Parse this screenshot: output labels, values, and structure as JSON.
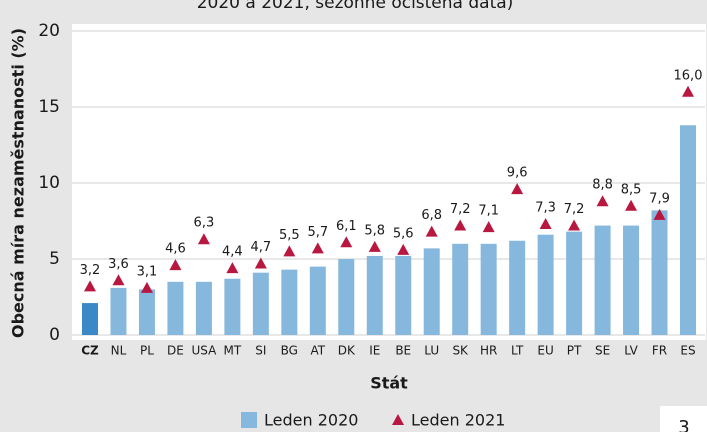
{
  "chart_data": {
    "type": "bar",
    "title": "2020 a 2021, sezónně očištěná data)",
    "x_label": "Stát",
    "y_label": "Obecná míra nezaměstnanosti (%)",
    "categories": [
      "CZ",
      "NL",
      "PL",
      "DE",
      "USA",
      "MT",
      "SI",
      "BG",
      "AT",
      "DK",
      "IE",
      "BE",
      "LU",
      "SK",
      "HR",
      "LT",
      "EU",
      "PT",
      "SE",
      "LV",
      "FR",
      "ES"
    ],
    "series": [
      {
        "name": "Leden 2020",
        "color": "#86b8de",
        "colors": [
          "#3b88c6",
          "#86b8de",
          "#86b8de",
          "#86b8de",
          "#86b8de",
          "#86b8de",
          "#86b8de",
          "#86b8de",
          "#86b8de",
          "#86b8de",
          "#86b8de",
          "#86b8de",
          "#86b8de",
          "#86b8de",
          "#86b8de",
          "#86b8de",
          "#86b8de",
          "#86b8de",
          "#86b8de",
          "#86b8de",
          "#86b8de",
          "#86b8de"
        ],
        "values": [
          2.1,
          3.1,
          3.0,
          3.5,
          3.5,
          3.7,
          4.1,
          4.3,
          4.5,
          5.0,
          5.2,
          5.2,
          5.7,
          6.0,
          6.0,
          6.2,
          6.6,
          6.8,
          7.2,
          7.2,
          8.2,
          13.8
        ]
      },
      {
        "name": "Leden 2021",
        "color": "#b8173f",
        "values": [
          3.2,
          3.6,
          3.1,
          4.6,
          6.3,
          4.4,
          4.7,
          5.5,
          5.7,
          6.1,
          5.8,
          5.6,
          6.8,
          7.2,
          7.1,
          9.6,
          7.3,
          7.2,
          8.8,
          8.5,
          7.9,
          16.0
        ],
        "value_labels": [
          "3,2",
          "3,6",
          "3,1",
          "4,6",
          "6,3",
          "4,4",
          "4,7",
          "5,5",
          "5,7",
          "6,1",
          "5,8",
          "5,6",
          "6,8",
          "7,2",
          "7,1",
          "9,6",
          "7,3",
          "7,2",
          "8,8",
          "8,5",
          "7,9",
          "16,0"
        ]
      }
    ],
    "ylim": [
      0,
      20
    ],
    "yticks": [
      0,
      5,
      10,
      15,
      20
    ],
    "grid": true,
    "page_number": "3"
  }
}
